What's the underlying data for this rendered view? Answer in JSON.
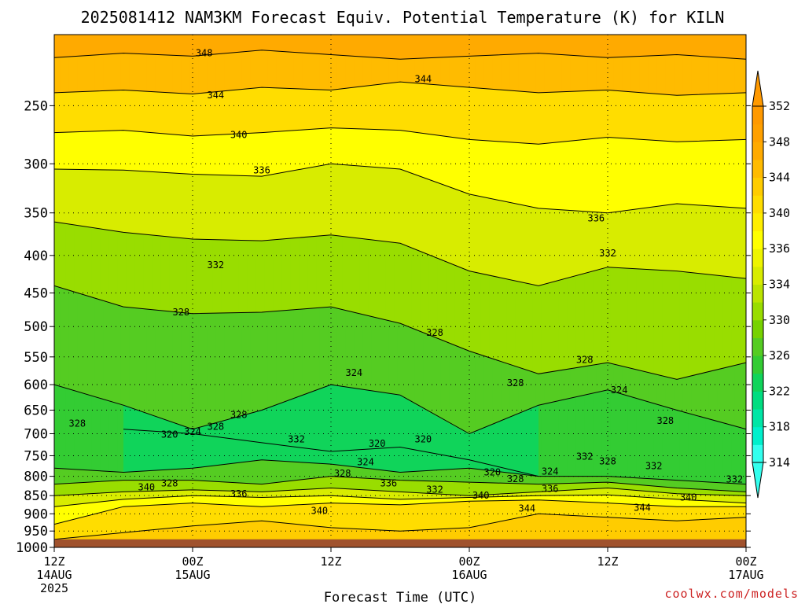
{
  "chart_data": {
    "type": "heatmap",
    "title": "2025081412 NAM3KM Forecast Equiv. Potential Temperature (K) for KILN",
    "xlabel": "Forecast Time (UTC)",
    "ylabel": "",
    "y_scale": "log",
    "ylim": [
      1000,
      200
    ],
    "xlim": [
      0,
      60
    ],
    "x_ticks": [
      {
        "value": 0,
        "label": "12Z",
        "date": "14AUG",
        "year": "2025"
      },
      {
        "value": 12,
        "label": "00Z",
        "date": "15AUG",
        "year": ""
      },
      {
        "value": 24,
        "label": "12Z",
        "date": "",
        "year": ""
      },
      {
        "value": 36,
        "label": "00Z",
        "date": "16AUG",
        "year": ""
      },
      {
        "value": 48,
        "label": "12Z",
        "date": "",
        "year": ""
      },
      {
        "value": 60,
        "label": "00Z",
        "date": "17AUG",
        "year": ""
      }
    ],
    "y_ticks": [
      250,
      300,
      350,
      400,
      450,
      500,
      550,
      600,
      650,
      700,
      750,
      800,
      850,
      900,
      950,
      1000
    ],
    "grid": true,
    "colorbar": {
      "unit": "K",
      "levels": [
        314,
        316,
        318,
        320,
        322,
        324,
        326,
        328,
        330,
        332,
        334,
        336,
        338,
        340,
        342,
        344,
        346,
        348,
        350,
        352
      ],
      "labels": [
        314,
        318,
        322,
        326,
        330,
        334,
        336,
        340,
        344,
        348,
        352
      ],
      "colors": [
        "#33ffee",
        "#00f0cc",
        "#00e6a6",
        "#00dd80",
        "#10d45a",
        "#33cc33",
        "#55cc22",
        "#77d200",
        "#99dd00",
        "#bbe400",
        "#d8ec00",
        "#eef400",
        "#ffff00",
        "#ffee00",
        "#ffdd00",
        "#ffcc00",
        "#ffbb00",
        "#ffaa00",
        "#ffa000",
        "#ff9900"
      ],
      "extend": "both"
    },
    "terrain_color": "#a0522d",
    "terrain_top_pressure": 975,
    "profile_times": [
      0,
      6,
      12,
      18,
      24,
      30,
      36,
      42,
      48,
      54,
      60
    ],
    "isentropes": [
      {
        "level": 348,
        "points": [
          [
            0,
            215
          ],
          [
            6,
            212
          ],
          [
            12,
            214
          ],
          [
            18,
            210
          ],
          [
            24,
            213
          ],
          [
            30,
            216
          ],
          [
            36,
            214
          ],
          [
            42,
            212
          ],
          [
            48,
            215
          ],
          [
            54,
            213
          ],
          [
            60,
            216
          ]
        ]
      },
      {
        "level": 344,
        "points": [
          [
            0,
            240
          ],
          [
            6,
            238
          ],
          [
            12,
            241
          ],
          [
            18,
            236
          ],
          [
            24,
            238
          ],
          [
            30,
            232
          ],
          [
            36,
            236
          ],
          [
            42,
            240
          ],
          [
            48,
            238
          ],
          [
            54,
            242
          ],
          [
            60,
            240
          ]
        ]
      },
      {
        "level": 340,
        "points": [
          [
            0,
            272
          ],
          [
            6,
            270
          ],
          [
            12,
            275
          ],
          [
            18,
            272
          ],
          [
            24,
            268
          ],
          [
            30,
            270
          ],
          [
            36,
            278
          ],
          [
            42,
            282
          ],
          [
            48,
            276
          ],
          [
            54,
            280
          ],
          [
            60,
            278
          ]
        ]
      },
      {
        "level": 336,
        "points": [
          [
            0,
            305
          ],
          [
            6,
            306
          ],
          [
            12,
            310
          ],
          [
            18,
            312
          ],
          [
            24,
            300
          ],
          [
            30,
            305
          ],
          [
            36,
            330
          ],
          [
            42,
            345
          ],
          [
            48,
            350
          ],
          [
            54,
            340
          ],
          [
            60,
            345
          ]
        ]
      },
      {
        "level": 332,
        "points": [
          [
            0,
            360
          ],
          [
            6,
            372
          ],
          [
            12,
            380
          ],
          [
            18,
            382
          ],
          [
            24,
            375
          ],
          [
            30,
            385
          ],
          [
            36,
            420
          ],
          [
            42,
            440
          ],
          [
            48,
            415
          ],
          [
            54,
            420
          ],
          [
            60,
            430
          ]
        ]
      },
      {
        "level": 328,
        "points": [
          [
            0,
            440
          ],
          [
            6,
            470
          ],
          [
            12,
            480
          ],
          [
            18,
            478
          ],
          [
            24,
            470
          ],
          [
            30,
            495
          ],
          [
            36,
            540
          ],
          [
            42,
            580
          ],
          [
            48,
            560
          ],
          [
            54,
            590
          ],
          [
            60,
            560
          ]
        ]
      },
      {
        "level": 324,
        "points": [
          [
            0,
            600
          ],
          [
            6,
            640
          ],
          [
            12,
            690
          ],
          [
            18,
            650
          ],
          [
            24,
            600
          ],
          [
            30,
            620
          ],
          [
            36,
            700
          ],
          [
            42,
            640
          ],
          [
            48,
            610
          ],
          [
            54,
            650
          ],
          [
            60,
            690
          ]
        ]
      },
      {
        "level": 320,
        "points": [
          [
            6,
            690
          ],
          [
            12,
            700
          ],
          [
            18,
            720
          ],
          [
            24,
            740
          ],
          [
            30,
            730
          ],
          [
            36,
            760
          ],
          [
            42,
            800
          ]
        ]
      },
      {
        "level": 324,
        "points": [
          [
            0,
            780
          ],
          [
            6,
            790
          ],
          [
            12,
            780
          ],
          [
            18,
            760
          ],
          [
            24,
            770
          ],
          [
            30,
            790
          ],
          [
            36,
            780
          ],
          [
            42,
            800
          ],
          [
            48,
            800
          ],
          [
            54,
            810
          ],
          [
            60,
            820
          ]
        ]
      },
      {
        "level": 328,
        "points": [
          [
            0,
            820
          ],
          [
            6,
            810
          ],
          [
            12,
            810
          ],
          [
            18,
            820
          ],
          [
            24,
            800
          ],
          [
            30,
            810
          ],
          [
            36,
            815
          ],
          [
            42,
            820
          ],
          [
            48,
            815
          ],
          [
            54,
            830
          ],
          [
            60,
            840
          ]
        ]
      },
      {
        "level": 332,
        "points": [
          [
            0,
            850
          ],
          [
            6,
            840
          ],
          [
            12,
            835
          ],
          [
            18,
            840
          ],
          [
            24,
            830
          ],
          [
            30,
            840
          ],
          [
            36,
            850
          ],
          [
            42,
            840
          ],
          [
            48,
            830
          ],
          [
            54,
            845
          ],
          [
            60,
            850
          ]
        ]
      },
      {
        "level": 336,
        "points": [
          [
            0,
            880
          ],
          [
            6,
            860
          ],
          [
            12,
            850
          ],
          [
            18,
            855
          ],
          [
            24,
            850
          ],
          [
            30,
            860
          ],
          [
            36,
            855
          ],
          [
            42,
            850
          ],
          [
            48,
            848
          ],
          [
            54,
            860
          ],
          [
            60,
            870
          ]
        ]
      },
      {
        "level": 340,
        "points": [
          [
            0,
            930
          ],
          [
            6,
            880
          ],
          [
            12,
            870
          ],
          [
            18,
            880
          ],
          [
            24,
            870
          ],
          [
            30,
            875
          ],
          [
            36,
            865
          ],
          [
            42,
            862
          ],
          [
            48,
            870
          ],
          [
            54,
            880
          ],
          [
            60,
            880
          ]
        ]
      },
      {
        "level": 344,
        "points": [
          [
            0,
            975
          ],
          [
            6,
            955
          ],
          [
            12,
            935
          ],
          [
            18,
            920
          ],
          [
            24,
            940
          ],
          [
            30,
            950
          ],
          [
            36,
            940
          ],
          [
            42,
            900
          ],
          [
            48,
            910
          ],
          [
            54,
            920
          ],
          [
            60,
            910
          ]
        ]
      }
    ],
    "contour_labels": [
      {
        "text": "348",
        "x": 13.0,
        "y": 212
      },
      {
        "text": "344",
        "x": 32.0,
        "y": 230
      },
      {
        "text": "344",
        "x": 14.0,
        "y": 242
      },
      {
        "text": "340",
        "x": 16.0,
        "y": 274
      },
      {
        "text": "336",
        "x": 18.0,
        "y": 306
      },
      {
        "text": "336",
        "x": 47.0,
        "y": 356
      },
      {
        "text": "332",
        "x": 48.0,
        "y": 397
      },
      {
        "text": "332",
        "x": 14.0,
        "y": 412
      },
      {
        "text": "328",
        "x": 11.0,
        "y": 478
      },
      {
        "text": "328",
        "x": 33.0,
        "y": 510
      },
      {
        "text": "328",
        "x": 46.0,
        "y": 555
      },
      {
        "text": "324",
        "x": 26.0,
        "y": 578
      },
      {
        "text": "328",
        "x": 40.0,
        "y": 597
      },
      {
        "text": "324",
        "x": 49.0,
        "y": 610
      },
      {
        "text": "328",
        "x": 16.0,
        "y": 660
      },
      {
        "text": "328",
        "x": 2.0,
        "y": 678
      },
      {
        "text": "328",
        "x": 53.0,
        "y": 672
      },
      {
        "text": "328",
        "x": 14.0,
        "y": 685
      },
      {
        "text": "324",
        "x": 12.0,
        "y": 696
      },
      {
        "text": "320",
        "x": 10.0,
        "y": 702
      },
      {
        "text": "320",
        "x": 32.0,
        "y": 712
      },
      {
        "text": "332",
        "x": 21.0,
        "y": 712
      },
      {
        "text": "320",
        "x": 28.0,
        "y": 722
      },
      {
        "text": "332",
        "x": 46.0,
        "y": 752
      },
      {
        "text": "328",
        "x": 48.0,
        "y": 763
      },
      {
        "text": "324",
        "x": 27.0,
        "y": 765
      },
      {
        "text": "332",
        "x": 52.0,
        "y": 775
      },
      {
        "text": "320",
        "x": 38.0,
        "y": 790
      },
      {
        "text": "324",
        "x": 43.0,
        "y": 788
      },
      {
        "text": "328",
        "x": 25.0,
        "y": 793
      },
      {
        "text": "328",
        "x": 40.0,
        "y": 807
      },
      {
        "text": "336",
        "x": 29.0,
        "y": 818
      },
      {
        "text": "328",
        "x": 10.0,
        "y": 818
      },
      {
        "text": "332",
        "x": 59.0,
        "y": 808
      },
      {
        "text": "340",
        "x": 8.0,
        "y": 828
      },
      {
        "text": "332",
        "x": 33.0,
        "y": 834
      },
      {
        "text": "336",
        "x": 43.0,
        "y": 832
      },
      {
        "text": "336",
        "x": 16.0,
        "y": 845
      },
      {
        "text": "340",
        "x": 37.0,
        "y": 850
      },
      {
        "text": "340",
        "x": 55.0,
        "y": 855
      },
      {
        "text": "344",
        "x": 41.0,
        "y": 885
      },
      {
        "text": "344",
        "x": 51.0,
        "y": 883
      },
      {
        "text": "340",
        "x": 23.0,
        "y": 892
      }
    ]
  },
  "footer": {
    "site": "coolwx.com/models"
  }
}
